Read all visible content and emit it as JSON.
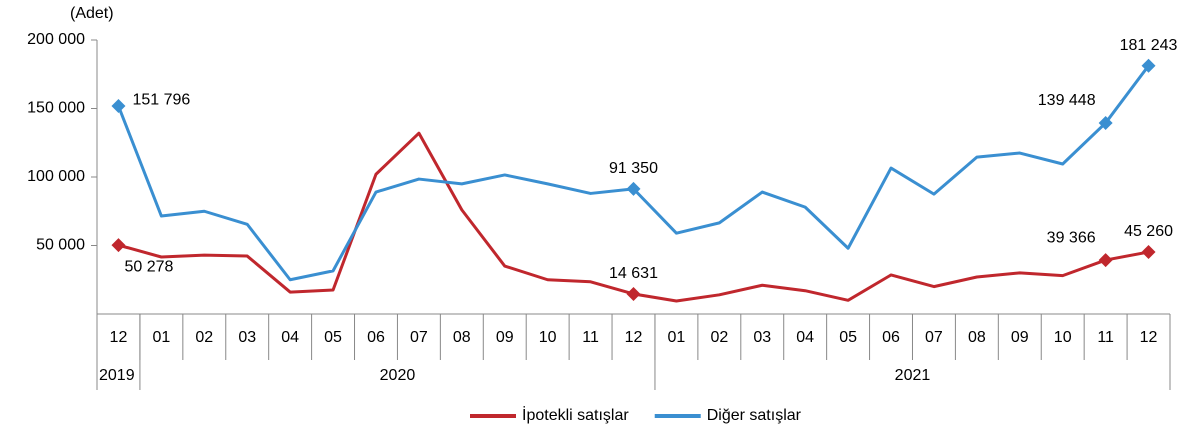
{
  "chart_data": {
    "type": "line",
    "y_label": "(Adet)",
    "groups": [
      {
        "label": "2019",
        "categories": [
          "12"
        ]
      },
      {
        "label": "2020",
        "categories": [
          "01",
          "02",
          "03",
          "04",
          "05",
          "06",
          "07",
          "08",
          "09",
          "10",
          "11",
          "12"
        ]
      },
      {
        "label": "2021",
        "categories": [
          "01",
          "02",
          "03",
          "04",
          "05",
          "06",
          "07",
          "08",
          "09",
          "10",
          "11",
          "12"
        ]
      }
    ],
    "series": [
      {
        "name": "İpotekli satışlar",
        "color": "#c0272d",
        "values": [
          50278,
          41600,
          43000,
          42300,
          16000,
          17500,
          102000,
          132000,
          76000,
          35000,
          25000,
          23500,
          14631,
          9500,
          14000,
          21000,
          17000,
          10000,
          28500,
          20000,
          27000,
          30000,
          28000,
          39366,
          45260
        ],
        "value_labels": [
          "50 278",
          null,
          null,
          null,
          null,
          null,
          null,
          null,
          null,
          null,
          null,
          null,
          "14 631",
          null,
          null,
          null,
          null,
          null,
          null,
          null,
          null,
          null,
          null,
          "39 366",
          "45 260"
        ]
      },
      {
        "name": "Diğer satışlar",
        "color": "#3a8fd1",
        "values": [
          151796,
          71500,
          75000,
          65500,
          25000,
          31500,
          89000,
          98500,
          95000,
          101500,
          95000,
          88000,
          91350,
          59000,
          66500,
          89000,
          78000,
          48000,
          106500,
          87500,
          114500,
          117500,
          109500,
          139448,
          181243
        ],
        "value_labels": [
          "151 796",
          null,
          null,
          null,
          null,
          null,
          null,
          null,
          null,
          null,
          null,
          null,
          "91 350",
          null,
          null,
          null,
          null,
          null,
          null,
          null,
          null,
          null,
          null,
          "139 448",
          "181 243"
        ]
      }
    ],
    "ylim": [
      0,
      200000
    ],
    "yticks": [
      {
        "value": 50000,
        "label": "50 000"
      },
      {
        "value": 100000,
        "label": "100 000"
      },
      {
        "value": 150000,
        "label": "150 000"
      },
      {
        "value": 200000,
        "label": "200 000"
      }
    ],
    "grid": false,
    "legend": "bottom"
  }
}
